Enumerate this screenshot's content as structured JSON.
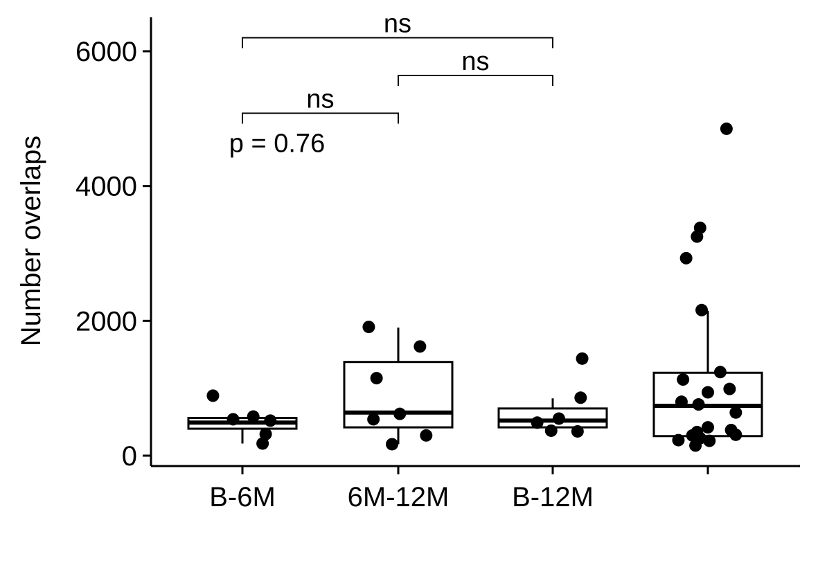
{
  "chart_data": {
    "type": "box",
    "ylabel": "Number overlaps",
    "xlabel": "",
    "ylim": [
      -150,
      6500
    ],
    "yticks": [
      0,
      2000,
      4000,
      6000
    ],
    "ytick_labels": [
      "0",
      "2000",
      "4000",
      "6000"
    ],
    "categories": [
      "B-6M",
      "6M-12M",
      "B-12M",
      ""
    ],
    "boxes": [
      {
        "category": "B-6M",
        "whisker_low": 180,
        "q1": 400,
        "median": 490,
        "q3": 560,
        "whisker_high": 560
      },
      {
        "category": "6M-12M",
        "whisker_low": 170,
        "q1": 420,
        "median": 640,
        "q3": 1390,
        "whisker_high": 1900
      },
      {
        "category": "B-12M",
        "whisker_low": 370,
        "q1": 420,
        "median": 520,
        "q3": 700,
        "whisker_high": 850
      },
      {
        "category": "",
        "whisker_low": 160,
        "q1": 290,
        "median": 740,
        "q3": 1230,
        "whisker_high": 2150
      }
    ],
    "points": [
      {
        "category": "B-6M",
        "values": [
          890,
          540,
          580,
          520,
          320,
          180
        ],
        "jitter": [
          -0.19,
          -0.06,
          0.07,
          0.18,
          0.15,
          0.13
        ]
      },
      {
        "category": "6M-12M",
        "values": [
          1910,
          1620,
          1150,
          540,
          620,
          300,
          170
        ],
        "jitter": [
          -0.19,
          0.14,
          -0.14,
          -0.16,
          0.01,
          0.18,
          -0.04
        ]
      },
      {
        "category": "B-12M",
        "values": [
          1440,
          860,
          490,
          550,
          370,
          360
        ],
        "jitter": [
          0.19,
          0.18,
          -0.1,
          0.04,
          -0.01,
          0.16
        ]
      },
      {
        "category": "",
        "values": [
          4850,
          3380,
          3250,
          2930,
          2160,
          1240,
          1130,
          990,
          940,
          800,
          760,
          640,
          420,
          380,
          350,
          310,
          300,
          260,
          230,
          220,
          150
        ],
        "jitter": [
          0.12,
          -0.05,
          -0.07,
          -0.14,
          -0.04,
          0.08,
          -0.16,
          0.14,
          0.0,
          -0.17,
          -0.06,
          0.18,
          0.0,
          0.15,
          -0.07,
          0.18,
          -0.1,
          -0.05,
          -0.19,
          0.01,
          -0.08
        ]
      }
    ],
    "comparisons": [
      {
        "group1": "B-6M",
        "group2": "B-12M",
        "label": "ns",
        "y": 6200
      },
      {
        "group1": "6M-12M",
        "group2": "B-12M",
        "label": "ns",
        "y": 5640
      },
      {
        "group1": "B-6M",
        "group2": "6M-12M",
        "label": "ns",
        "y": 5080
      }
    ],
    "global_test": {
      "label": "p = 0.76",
      "x_category": "B-6M",
      "y": 4650
    },
    "grid": false,
    "legend": "none"
  }
}
